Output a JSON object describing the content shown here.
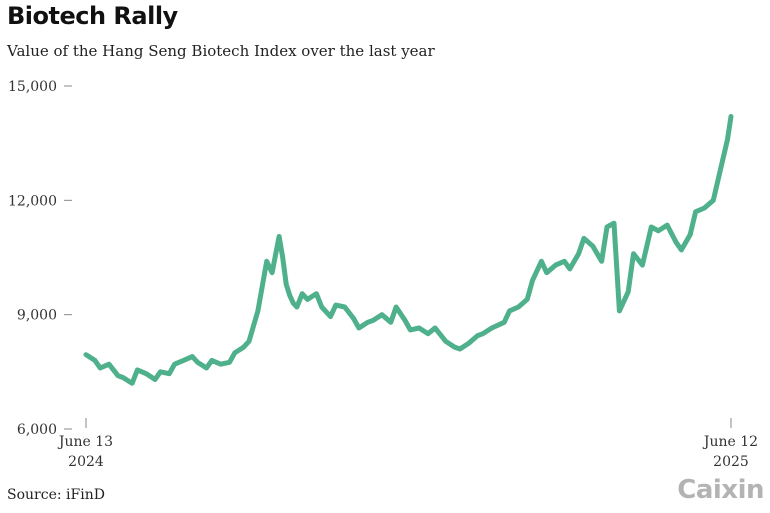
{
  "title": "Biotech Rally",
  "subtitle": "Value of the Hang Seng Biotech Index over the last year",
  "source": "Source: iFinD",
  "logo": "Caixin",
  "colors": {
    "line": "#4fb08c",
    "axis": "#888888",
    "text": "#333333"
  },
  "chart_data": {
    "type": "line",
    "title": "Biotech Rally",
    "subtitle": "Value of the Hang Seng Biotech Index over the last year",
    "xlabel": "",
    "ylabel": "",
    "xlim": [
      "2024-06-13",
      "2025-06-12"
    ],
    "ylim": [
      6000,
      15000
    ],
    "y_ticks": [
      6000,
      9000,
      12000,
      15000
    ],
    "y_tick_labels": [
      "6,000",
      "9,000",
      "12,000",
      "15,000"
    ],
    "x_tick_labels": [
      {
        "line1": "June 13",
        "line2": "2024"
      },
      {
        "line1": "June 12",
        "line2": "2025"
      }
    ],
    "grid": false,
    "legend": "none",
    "series": [
      {
        "x": [
          "2024-06-13",
          "2024-06-18",
          "2024-06-21",
          "2024-06-26",
          "2024-07-01",
          "2024-07-04",
          "2024-07-09",
          "2024-07-12",
          "2024-07-17",
          "2024-07-22",
          "2024-07-25",
          "2024-07-30",
          "2024-08-02",
          "2024-08-07",
          "2024-08-12",
          "2024-08-15",
          "2024-08-20",
          "2024-08-23",
          "2024-08-28",
          "2024-09-02",
          "2024-09-05",
          "2024-09-10",
          "2024-09-13",
          "2024-09-18",
          "2024-09-23",
          "2024-09-26",
          "2024-09-30",
          "2024-10-02",
          "2024-10-04",
          "2024-10-06",
          "2024-10-08",
          "2024-10-10",
          "2024-10-13",
          "2024-10-16",
          "2024-10-21",
          "2024-10-24",
          "2024-10-29",
          "2024-11-01",
          "2024-11-06",
          "2024-11-11",
          "2024-11-14",
          "2024-11-19",
          "2024-11-22",
          "2024-11-27",
          "2024-12-02",
          "2024-12-05",
          "2024-12-10",
          "2024-12-13",
          "2024-12-18",
          "2024-12-23",
          "2024-12-27",
          "2025-01-02",
          "2025-01-07",
          "2025-01-10",
          "2025-01-15",
          "2025-01-20",
          "2025-01-23",
          "2025-01-28",
          "2025-02-04",
          "2025-02-07",
          "2025-02-12",
          "2025-02-17",
          "2025-02-20",
          "2025-02-25",
          "2025-02-28",
          "2025-03-05",
          "2025-03-10",
          "2025-03-13",
          "2025-03-18",
          "2025-03-21",
          "2025-03-26",
          "2025-03-31",
          "2025-04-03",
          "2025-04-07",
          "2025-04-10",
          "2025-04-15",
          "2025-04-18",
          "2025-04-23",
          "2025-04-28",
          "2025-05-02",
          "2025-05-07",
          "2025-05-12",
          "2025-05-15",
          "2025-05-20",
          "2025-05-23",
          "2025-05-28",
          "2025-06-02",
          "2025-06-05",
          "2025-06-10",
          "2025-06-12"
        ],
        "values": [
          7950,
          7800,
          7600,
          7700,
          7400,
          7350,
          7200,
          7550,
          7450,
          7300,
          7500,
          7450,
          7700,
          7800,
          7900,
          7750,
          7600,
          7800,
          7700,
          7750,
          8000,
          8150,
          8300,
          9100,
          10400,
          10100,
          11050,
          10500,
          9800,
          9500,
          9300,
          9200,
          9550,
          9400,
          9550,
          9200,
          8950,
          9250,
          9200,
          8900,
          8650,
          8800,
          8850,
          9000,
          8800,
          9200,
          8850,
          8600,
          8650,
          8500,
          8650,
          8300,
          8150,
          8100,
          8250,
          8450,
          8500,
          8650,
          8800,
          9100,
          9200,
          9400,
          9900,
          10400,
          10100,
          10300,
          10400,
          10200,
          10600,
          11000,
          10800,
          10400,
          11300,
          11400,
          9100,
          9600,
          10600,
          10300,
          11300,
          11200,
          11350,
          10900,
          10700,
          11100,
          11700,
          11800,
          12000,
          12600,
          13600,
          14200
        ]
      }
    ]
  }
}
